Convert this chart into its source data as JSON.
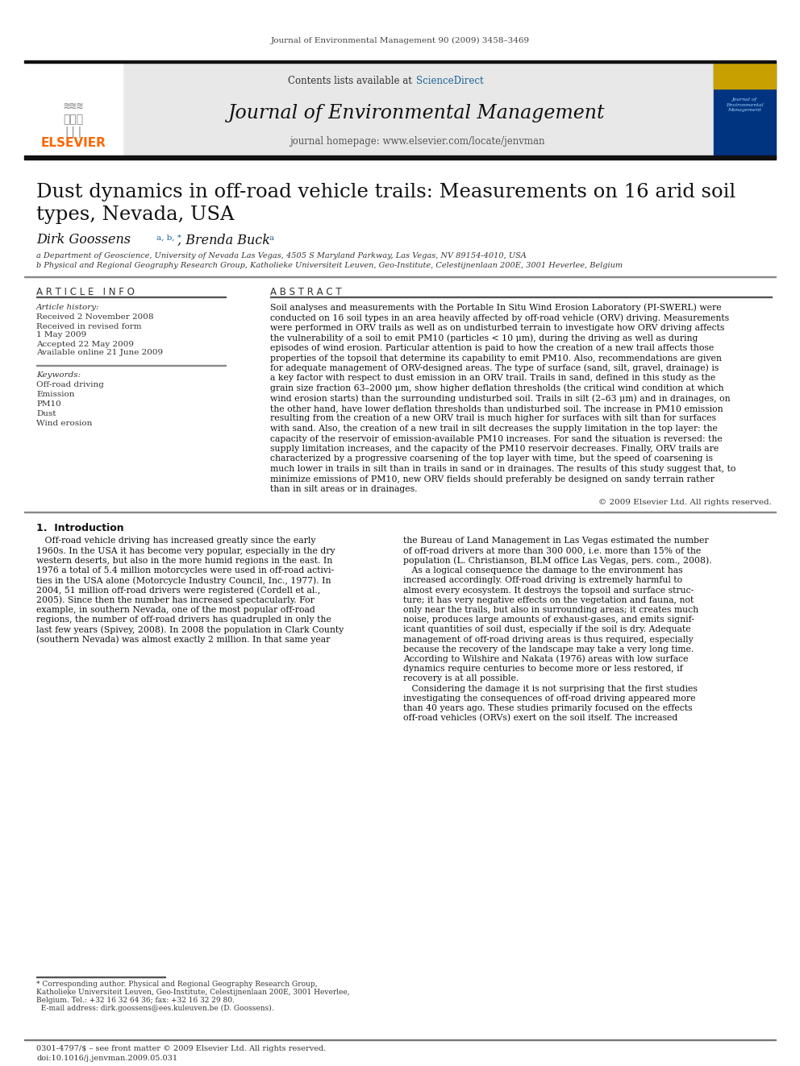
{
  "journal_ref": "Journal of Environmental Management 90 (2009) 3458–3469",
  "contents_text": "Contents lists available at ",
  "sciencedirect": "ScienceDirect",
  "journal_title": "Journal of Environmental Management",
  "homepage_text": "journal homepage: www.elsevier.com/locate/jenvman",
  "paper_title_line1": "Dust dynamics in off-road vehicle trails: Measurements on 16 arid soil",
  "paper_title_line2": "types, Nevada, USA",
  "author1": "Dirk Goossens",
  "author1_sup": "a, b, *",
  "author2": ", Brenda Buck",
  "author2_sup": "a",
  "affil1": "a Department of Geoscience, University of Nevada Las Vegas, 4505 S Maryland Parkway, Las Vegas, NV 89154-4010, USA",
  "affil2": "b Physical and Regional Geography Research Group, Katholieke Universiteit Leuven, Geo-Institute, Celestijnenlaan 200E, 3001 Heverlee, Belgium",
  "article_info_header": "A R T I C L E   I N F O",
  "abstract_header": "A B S T R A C T",
  "article_history_label": "Article history:",
  "received": "Received 2 November 2008",
  "received_revised": "Received in revised form",
  "revised_date": "1 May 2009",
  "accepted": "Accepted 22 May 2009",
  "available": "Available online 21 June 2009",
  "keywords_label": "Keywords:",
  "keywords": [
    "Off-road driving",
    "Emission",
    "PM10",
    "Dust",
    "Wind erosion"
  ],
  "abstract_lines": [
    "Soil analyses and measurements with the Portable In Situ Wind Erosion Laboratory (PI-SWERL) were",
    "conducted on 16 soil types in an area heavily affected by off-road vehicle (ORV) driving. Measurements",
    "were performed in ORV trails as well as on undisturbed terrain to investigate how ORV driving affects",
    "the vulnerability of a soil to emit PM10 (particles < 10 μm), during the driving as well as during",
    "episodes of wind erosion. Particular attention is paid to how the creation of a new trail affects those",
    "properties of the topsoil that determine its capability to emit PM10. Also, recommendations are given",
    "for adequate management of ORV-designed areas. The type of surface (sand, silt, gravel, drainage) is",
    "a key factor with respect to dust emission in an ORV trail. Trails in sand, defined in this study as the",
    "grain size fraction 63–2000 μm, show higher deflation thresholds (the critical wind condition at which",
    "wind erosion starts) than the surrounding undisturbed soil. Trails in silt (2–63 μm) and in drainages, on",
    "the other hand, have lower deflation thresholds than undisturbed soil. The increase in PM10 emission",
    "resulting from the creation of a new ORV trail is much higher for surfaces with silt than for surfaces",
    "with sand. Also, the creation of a new trail in silt decreases the supply limitation in the top layer: the",
    "capacity of the reservoir of emission-available PM10 increases. For sand the situation is reversed: the",
    "supply limitation increases, and the capacity of the PM10 reservoir decreases. Finally, ORV trails are",
    "characterized by a progressive coarsening of the top layer with time, but the speed of coarsening is",
    "much lower in trails in silt than in trails in sand or in drainages. The results of this study suggest that, to",
    "minimize emissions of PM10, new ORV fields should preferably be designed on sandy terrain rather",
    "than in silt areas or in drainages."
  ],
  "copyright": "© 2009 Elsevier Ltd. All rights reserved.",
  "intro_header": "1.  Introduction",
  "intro_col1": [
    "   Off-road vehicle driving has increased greatly since the early",
    "1960s. In the USA it has become very popular, especially in the dry",
    "western deserts, but also in the more humid regions in the east. In",
    "1976 a total of 5.4 million motorcycles were used in off-road activi-",
    "ties in the USA alone (Motorcycle Industry Council, Inc., 1977). In",
    "2004, 51 million off-road drivers were registered (Cordell et al.,",
    "2005). Since then the number has increased spectacularly. For",
    "example, in southern Nevada, one of the most popular off-road",
    "regions, the number of off-road drivers has quadrupled in only the",
    "last few years (Spivey, 2008). In 2008 the population in Clark County",
    "(southern Nevada) was almost exactly 2 million. In that same year"
  ],
  "intro_col2": [
    "the Bureau of Land Management in Las Vegas estimated the number",
    "of off-road drivers at more than 300 000, i.e. more than 15% of the",
    "population (L. Christianson, BLM office Las Vegas, pers. com., 2008).",
    "   As a logical consequence the damage to the environment has",
    "increased accordingly. Off-road driving is extremely harmful to",
    "almost every ecosystem. It destroys the topsoil and surface struc-",
    "ture; it has very negative effects on the vegetation and fauna, not",
    "only near the trails, but also in surrounding areas; it creates much",
    "noise, produces large amounts of exhaust-gases, and emits signif-",
    "icant quantities of soil dust, especially if the soil is dry. Adequate",
    "management of off-road driving areas is thus required, especially",
    "because the recovery of the landscape may take a very long time.",
    "According to Wilshire and Nakata (1976) areas with low surface",
    "dynamics require centuries to become more or less restored, if",
    "recovery is at all possible.",
    "   Considering the damage it is not surprising that the first studies",
    "investigating the consequences of off-road driving appeared more",
    "than 40 years ago. These studies primarily focused on the effects",
    "off-road vehicles (ORVs) exert on the soil itself. The increased"
  ],
  "footnote_lines": [
    "* Corresponding author. Physical and Regional Geography Research Group,",
    "Katholieke Universiteit Leuven, Geo-Institute, Celestijnenlaan 200E, 3001 Heverlee,",
    "Belgium. Tel.: +32 16 32 64 36; fax: +32 16 32 29 80.",
    "  E-mail address: dirk.goossens@ees.kuleuven.be (D. Goossens)."
  ],
  "footer_text1": "0301-4797/$ – see front matter © 2009 Elsevier Ltd. All rights reserved.",
  "footer_text2": "doi:10.1016/j.jenvman.2009.05.031",
  "elsevier_color": "#FF6600",
  "sciencedirect_color": "#1a6496",
  "link_color": "#1a6496",
  "header_bg": "#e8e8e8",
  "dark_bar_color": "#111111",
  "page_bg": "#ffffff"
}
